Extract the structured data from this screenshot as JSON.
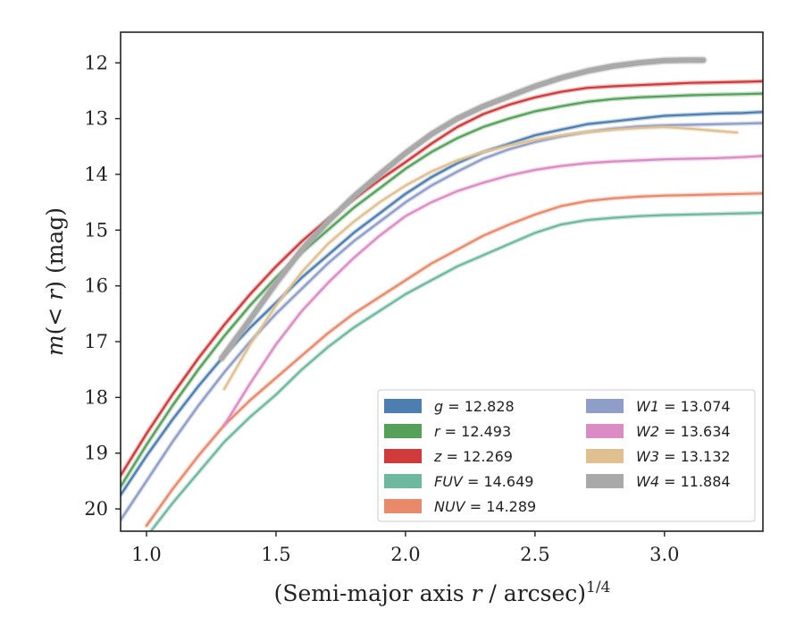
{
  "chart_data": {
    "type": "line",
    "xlabel": "(Semi-major axis r / arcsec)^{1/4}",
    "ylabel": "m(< r) (mag)",
    "xlim": [
      0.9,
      3.38
    ],
    "ylim": [
      20.4,
      11.45
    ],
    "y_inverted": true,
    "x_ticks": [
      "1.0",
      "1.5",
      "2.0",
      "2.5",
      "3.0"
    ],
    "y_ticks": [
      "12",
      "13",
      "14",
      "15",
      "16",
      "17",
      "18",
      "19",
      "20"
    ],
    "legend_placement": "lower-right",
    "grid": false,
    "series": [
      {
        "name": "g = 12.828",
        "band": "g",
        "mag": "12.828",
        "color": "#4c7fb0",
        "x": [
          0.9,
          1.0,
          1.1,
          1.2,
          1.3,
          1.4,
          1.5,
          1.6,
          1.7,
          1.8,
          1.9,
          2.0,
          2.1,
          2.2,
          2.3,
          2.4,
          2.5,
          2.6,
          2.7,
          2.8,
          2.9,
          3.0,
          3.1,
          3.2,
          3.3,
          3.38
        ],
        "y": [
          19.75,
          19.05,
          18.4,
          17.8,
          17.25,
          16.75,
          16.3,
          15.85,
          15.45,
          15.05,
          14.7,
          14.35,
          14.05,
          13.8,
          13.6,
          13.45,
          13.3,
          13.2,
          13.1,
          13.05,
          13.0,
          12.95,
          12.93,
          12.91,
          12.9,
          12.88
        ]
      },
      {
        "name": "r = 12.493",
        "band": "r",
        "mag": "12.493",
        "color": "#55a15a",
        "x": [
          0.9,
          1.0,
          1.1,
          1.2,
          1.3,
          1.4,
          1.5,
          1.6,
          1.7,
          1.8,
          1.9,
          2.0,
          2.1,
          2.2,
          2.3,
          2.4,
          2.5,
          2.6,
          2.7,
          2.8,
          2.9,
          3.0,
          3.1,
          3.2,
          3.3,
          3.38
        ],
        "y": [
          19.6,
          18.85,
          18.15,
          17.5,
          16.9,
          16.35,
          15.85,
          15.4,
          15.0,
          14.6,
          14.25,
          13.9,
          13.6,
          13.35,
          13.15,
          13.0,
          12.87,
          12.78,
          12.7,
          12.65,
          12.62,
          12.6,
          12.58,
          12.57,
          12.56,
          12.55
        ]
      },
      {
        "name": "z = 12.269",
        "band": "z",
        "mag": "12.269",
        "color": "#cf3a3a",
        "x": [
          0.9,
          1.0,
          1.1,
          1.2,
          1.3,
          1.4,
          1.5,
          1.6,
          1.7,
          1.8,
          1.9,
          2.0,
          2.1,
          2.2,
          2.3,
          2.4,
          2.5,
          2.6,
          2.7,
          2.8,
          2.9,
          3.0,
          3.1,
          3.2,
          3.3,
          3.38
        ],
        "y": [
          19.4,
          18.65,
          17.95,
          17.3,
          16.7,
          16.15,
          15.65,
          15.2,
          14.8,
          14.45,
          14.1,
          13.78,
          13.45,
          13.15,
          12.92,
          12.75,
          12.62,
          12.52,
          12.45,
          12.42,
          12.4,
          12.38,
          12.36,
          12.35,
          12.34,
          12.33
        ]
      },
      {
        "name": "FUV = 14.649",
        "band": "FUV",
        "mag": "14.649",
        "color": "#6fb8a0",
        "x": [
          1.0,
          1.1,
          1.2,
          1.3,
          1.4,
          1.5,
          1.6,
          1.7,
          1.8,
          1.9,
          2.0,
          2.1,
          2.2,
          2.3,
          2.4,
          2.5,
          2.6,
          2.7,
          2.8,
          2.9,
          3.0,
          3.1,
          3.2,
          3.3,
          3.38
        ],
        "y": [
          20.5,
          19.9,
          19.35,
          18.8,
          18.35,
          17.95,
          17.5,
          17.1,
          16.75,
          16.45,
          16.15,
          15.9,
          15.65,
          15.45,
          15.25,
          15.05,
          14.9,
          14.82,
          14.78,
          14.75,
          14.73,
          14.72,
          14.71,
          14.7,
          14.69
        ]
      },
      {
        "name": "NUV = 14.289",
        "band": "NUV",
        "mag": "14.289",
        "color": "#e8896a",
        "x": [
          1.0,
          1.1,
          1.2,
          1.3,
          1.4,
          1.5,
          1.6,
          1.7,
          1.8,
          1.9,
          2.0,
          2.1,
          2.2,
          2.3,
          2.4,
          2.5,
          2.6,
          2.7,
          2.8,
          2.9,
          3.0,
          3.1,
          3.2,
          3.3,
          3.38
        ],
        "y": [
          20.3,
          19.65,
          19.05,
          18.5,
          18.05,
          17.65,
          17.25,
          16.85,
          16.5,
          16.2,
          15.9,
          15.6,
          15.35,
          15.1,
          14.9,
          14.72,
          14.57,
          14.48,
          14.43,
          14.4,
          14.38,
          14.37,
          14.36,
          14.35,
          14.34
        ]
      },
      {
        "name": "W1 = 13.074",
        "band": "W1",
        "mag": "13.074",
        "color": "#8e9ec8",
        "x": [
          0.9,
          1.0,
          1.1,
          1.2,
          1.3,
          1.4,
          1.5,
          1.6,
          1.7,
          1.8,
          1.9,
          2.0,
          2.1,
          2.2,
          2.3,
          2.4,
          2.5,
          2.6,
          2.7,
          2.8,
          2.9,
          3.0,
          3.1,
          3.2,
          3.3,
          3.38
        ],
        "y": [
          20.2,
          19.5,
          18.8,
          18.15,
          17.55,
          17.0,
          16.5,
          16.05,
          15.6,
          15.2,
          14.85,
          14.5,
          14.2,
          13.95,
          13.72,
          13.55,
          13.42,
          13.32,
          13.24,
          13.18,
          13.14,
          13.12,
          13.11,
          13.1,
          13.09,
          13.08
        ]
      },
      {
        "name": "W2 = 13.634",
        "band": "W2",
        "mag": "13.634",
        "color": "#dc8cc4",
        "x": [
          1.3,
          1.4,
          1.5,
          1.6,
          1.7,
          1.8,
          1.9,
          2.0,
          2.1,
          2.2,
          2.3,
          2.4,
          2.5,
          2.6,
          2.7,
          2.8,
          2.9,
          3.0,
          3.1,
          3.2,
          3.3,
          3.38
        ],
        "y": [
          18.5,
          17.75,
          17.05,
          16.45,
          15.95,
          15.5,
          15.1,
          14.75,
          14.5,
          14.3,
          14.15,
          14.02,
          13.92,
          13.85,
          13.8,
          13.77,
          13.75,
          13.73,
          13.72,
          13.71,
          13.69,
          13.67
        ]
      },
      {
        "name": "W3 = 13.132",
        "band": "W3",
        "mag": "13.132",
        "color": "#e0c090",
        "x": [
          1.3,
          1.4,
          1.5,
          1.6,
          1.7,
          1.8,
          1.9,
          2.0,
          2.1,
          2.2,
          2.3,
          2.4,
          2.5,
          2.6,
          2.7,
          2.8,
          2.9,
          3.0,
          3.1,
          3.2,
          3.28
        ],
        "y": [
          17.85,
          17.05,
          16.35,
          15.75,
          15.25,
          14.85,
          14.5,
          14.2,
          13.95,
          13.75,
          13.6,
          13.48,
          13.38,
          13.3,
          13.24,
          13.2,
          13.17,
          13.15,
          13.18,
          13.22,
          13.25
        ]
      },
      {
        "name": "W4 = 11.884",
        "band": "W4",
        "mag": "11.884",
        "color": "#a9a9a9",
        "x": [
          1.29,
          1.4,
          1.5,
          1.6,
          1.7,
          1.8,
          1.9,
          2.0,
          2.1,
          2.2,
          2.3,
          2.4,
          2.5,
          2.6,
          2.7,
          2.8,
          2.9,
          3.0,
          3.1,
          3.15
        ],
        "y": [
          17.3,
          16.6,
          15.95,
          15.35,
          14.85,
          14.4,
          14.0,
          13.62,
          13.28,
          13.0,
          12.78,
          12.6,
          12.42,
          12.27,
          12.15,
          12.06,
          12.0,
          11.96,
          11.95,
          11.95
        ]
      }
    ]
  }
}
